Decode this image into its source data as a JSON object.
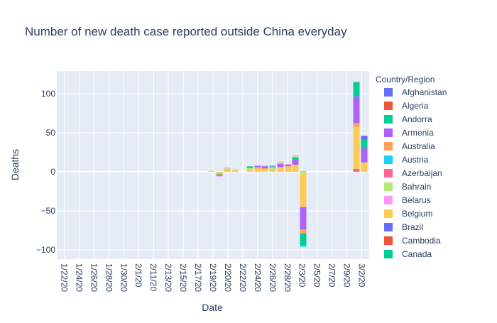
{
  "chart_data": {
    "type": "bar",
    "barmode": "relative",
    "title": "Number of new death case reported outside China everyday",
    "xlabel": "Date",
    "ylabel": "Deaths",
    "ylim": [
      -110,
      128
    ],
    "yticks": [
      -100,
      -50,
      0,
      50,
      100
    ],
    "ytick_labels": [
      "−100",
      "−50",
      "0",
      "50",
      "100"
    ],
    "xtick_labels": [
      "1/22/20",
      "1/24/20",
      "1/26/20",
      "1/28/20",
      "1/30/20",
      "2/1/20",
      "2/11/20",
      "2/13/20",
      "2/15/20",
      "2/17/20",
      "2/19/20",
      "2/20/20",
      "2/22/20",
      "2/24/20",
      "2/26/20",
      "2/28/20",
      "2/3/20",
      "2/5/20",
      "2/7/20",
      "2/9/20",
      "3/2/20"
    ],
    "grid": true,
    "background": "#e5ecf6",
    "legend": {
      "title": "Country/Region",
      "position": "right",
      "entries": [
        {
          "name": "Afghanistan",
          "color": "#636efa"
        },
        {
          "name": "Algeria",
          "color": "#EF553B"
        },
        {
          "name": "Andorra",
          "color": "#00cc96"
        },
        {
          "name": "Armenia",
          "color": "#ab63fa"
        },
        {
          "name": "Australia",
          "color": "#FFA15A"
        },
        {
          "name": "Austria",
          "color": "#19d3f3"
        },
        {
          "name": "Azerbaijan",
          "color": "#FF6692"
        },
        {
          "name": "Bahrain",
          "color": "#B6E880"
        },
        {
          "name": "Belarus",
          "color": "#FF97FF"
        },
        {
          "name": "Belgium",
          "color": "#FECB52"
        },
        {
          "name": "Brazil",
          "color": "#636efa"
        },
        {
          "name": "Cambodia",
          "color": "#EF553B"
        },
        {
          "name": "Canada",
          "color": "#00cc96"
        }
      ]
    },
    "stacks": [
      {
        "x": "2/19/20",
        "segments": [
          {
            "v": 1,
            "c": "#FECB52"
          },
          {
            "v": 0.5,
            "c": "#B6E880"
          }
        ]
      },
      {
        "x": "2/19/20b",
        "segments": [
          {
            "v": -2,
            "c": "#FECB52"
          },
          {
            "v": -1.5,
            "c": "#FFA15A"
          },
          {
            "v": -1.5,
            "c": "#00cc96"
          },
          {
            "v": -1,
            "c": "#FF97FF"
          }
        ]
      },
      {
        "x": "2/20/20",
        "segments": [
          {
            "v": 3,
            "c": "#FECB52"
          },
          {
            "v": 1.5,
            "c": "#B6E880"
          },
          {
            "v": 1,
            "c": "#FF97FF"
          }
        ]
      },
      {
        "x": "2/20/20b",
        "segments": [
          {
            "v": 2,
            "c": "#FECB52"
          },
          {
            "v": 1,
            "c": "#B6E880"
          }
        ]
      },
      {
        "x": "2/24/20",
        "segments": [
          {
            "v": 3,
            "c": "#FECB52"
          },
          {
            "v": 2,
            "c": "#B6E880"
          },
          {
            "v": 2,
            "c": "#00cc96"
          }
        ]
      },
      {
        "x": "2/24/20b",
        "segments": [
          {
            "v": 4,
            "c": "#FECB52"
          },
          {
            "v": 2,
            "c": "#FFA15A"
          },
          {
            "v": 1.5,
            "c": "#ab63fa"
          },
          {
            "v": 1,
            "c": "#FF97FF"
          }
        ]
      },
      {
        "x": "2/26/20",
        "segments": [
          {
            "v": 3,
            "c": "#FECB52"
          },
          {
            "v": 2,
            "c": "#FFA15A"
          },
          {
            "v": 2,
            "c": "#636efa"
          },
          {
            "v": 1,
            "c": "#FF97FF"
          }
        ]
      },
      {
        "x": "2/26/20b",
        "segments": [
          {
            "v": 3.5,
            "c": "#FECB52"
          },
          {
            "v": 2,
            "c": "#B6E880"
          },
          {
            "v": 1.5,
            "c": "#19d3f3"
          },
          {
            "v": 1,
            "c": "#FF6692"
          }
        ]
      },
      {
        "x": "2/28/20",
        "segments": [
          {
            "v": 6,
            "c": "#FECB52"
          },
          {
            "v": 4,
            "c": "#ab63fa"
          },
          {
            "v": 2,
            "c": "#FF97FF"
          },
          {
            "v": 1,
            "c": "#B6E880"
          }
        ]
      },
      {
        "x": "2/28/20b",
        "segments": [
          {
            "v": 7,
            "c": "#FECB52"
          },
          {
            "v": 2,
            "c": "#ab63fa"
          },
          {
            "v": 1,
            "c": "#FF97FF"
          }
        ]
      },
      {
        "x": "2/3/20pre",
        "segments": [
          {
            "v": 9,
            "c": "#FECB52"
          },
          {
            "v": 7,
            "c": "#ab63fa"
          },
          {
            "v": 2.5,
            "c": "#00cc96"
          },
          {
            "v": 1.5,
            "c": "#B6E880"
          },
          {
            "v": 1,
            "c": "#FF97FF"
          }
        ]
      },
      {
        "x": "2/3/20",
        "segments": [
          {
            "v": -2,
            "c": "#B6E880"
          },
          {
            "v": -43,
            "c": "#FECB52"
          },
          {
            "v": -29,
            "c": "#ab63fa"
          },
          {
            "v": -5,
            "c": "#FFA15A"
          },
          {
            "v": -15,
            "c": "#00cc96"
          },
          {
            "v": -2,
            "c": "#19d3f3"
          }
        ],
        "pos": [
          {
            "v": 1,
            "c": "#FF97FF"
          }
        ]
      },
      {
        "x": "2/9/20b",
        "segments": [
          {
            "v": 2,
            "c": "#FF6692"
          },
          {
            "v": 1.5,
            "c": "#EF553B"
          },
          {
            "v": 54,
            "c": "#FECB52"
          },
          {
            "v": 5,
            "c": "#FFA15A"
          },
          {
            "v": 34,
            "c": "#ab63fa"
          },
          {
            "v": 18,
            "c": "#00cc96"
          },
          {
            "v": 1.5,
            "c": "#B6E880"
          }
        ]
      },
      {
        "x": "3/2/20",
        "segments": [
          {
            "v": 12,
            "c": "#FECB52"
          },
          {
            "v": 18,
            "c": "#ab63fa"
          },
          {
            "v": 11,
            "c": "#00cc96"
          },
          {
            "v": 5,
            "c": "#636efa"
          }
        ]
      }
    ]
  }
}
